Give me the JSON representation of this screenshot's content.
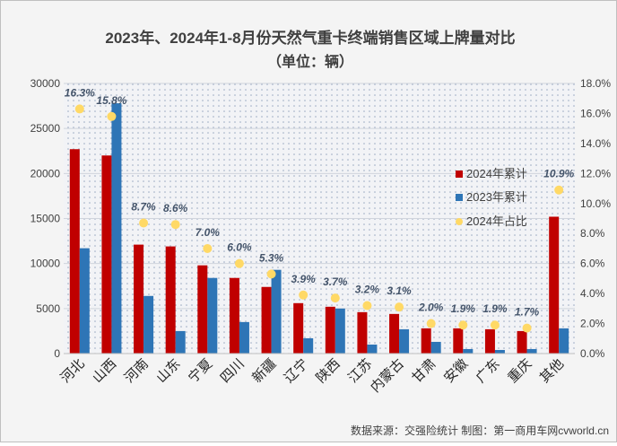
{
  "colors": {
    "series_2024": "#c00000",
    "series_2023": "#2e75b6",
    "share_2024": "#ffd966",
    "label_text": "#44546a",
    "axis_text": "#404040"
  },
  "source_note": "数据来源：交强险统计  制图：第一商用车网cvworld.cn",
  "chart_data": {
    "type": "bar",
    "title": "2023年、2024年1-8月份天然气重卡终端销售区域上牌量对比",
    "subtitle": "（单位：辆）",
    "categories": [
      "河北",
      "山西",
      "河南",
      "山东",
      "宁夏",
      "四川",
      "新疆",
      "辽宁",
      "陕西",
      "江苏",
      "内蒙古",
      "甘肃",
      "安徽",
      "广东",
      "重庆",
      "其他"
    ],
    "series": [
      {
        "name": "2024年累计",
        "axis": "left",
        "type": "bar",
        "values": [
          22700,
          22000,
          12100,
          11900,
          9800,
          8400,
          7400,
          5600,
          5200,
          4600,
          4400,
          2800,
          2800,
          2700,
          2500,
          15200
        ]
      },
      {
        "name": "2023年累计",
        "axis": "left",
        "type": "bar",
        "values": [
          11700,
          27800,
          6400,
          2500,
          8400,
          3500,
          9300,
          1700,
          5000,
          1000,
          2700,
          1300,
          500,
          400,
          500,
          2800
        ]
      },
      {
        "name": "2024年占比",
        "axis": "right",
        "type": "scatter",
        "values": [
          16.3,
          15.8,
          8.7,
          8.6,
          7.0,
          6.0,
          5.3,
          3.9,
          3.7,
          3.2,
          3.1,
          2.0,
          1.9,
          1.9,
          1.7,
          10.9
        ],
        "labels": [
          "16.3%",
          "15.8%",
          "8.7%",
          "8.6%",
          "7.0%",
          "6.0%",
          "5.3%",
          "3.9%",
          "3.7%",
          "3.2%",
          "3.1%",
          "2.0%",
          "1.9%",
          "1.9%",
          "1.7%",
          "10.9%"
        ]
      }
    ],
    "y_left": {
      "min": 0,
      "max": 30000,
      "ticks": [
        "0",
        "5000",
        "10000",
        "15000",
        "20000",
        "25000",
        "30000"
      ]
    },
    "y_right": {
      "min": 0,
      "max": 18,
      "ticks": [
        "0.0%",
        "2.0%",
        "4.0%",
        "6.0%",
        "8.0%",
        "10.0%",
        "12.0%",
        "14.0%",
        "16.0%",
        "18.0%"
      ]
    },
    "grid": true,
    "legend": {
      "position": "right",
      "entries": [
        "2024年累计",
        "2023年累计",
        "2024年占比"
      ]
    }
  }
}
